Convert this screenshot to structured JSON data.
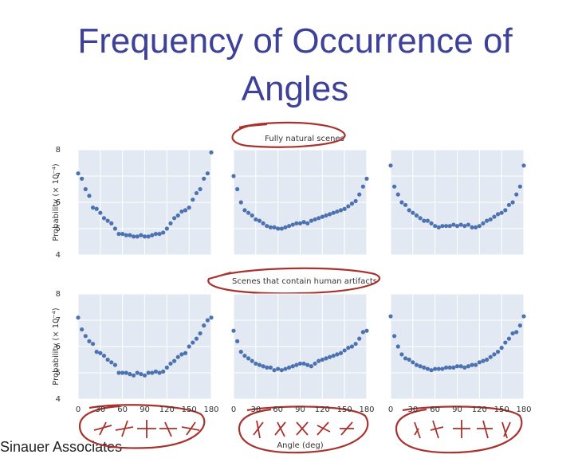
{
  "title": "Frequency of Occurrence of Angles",
  "sections": [
    "Fully natural scenes",
    "Scenes that contain human artifacts"
  ],
  "footer": "Sinauer Associates",
  "chart_data": [
    {
      "type": "scatter",
      "color": "#4c72b0",
      "grid": true,
      "y_label": "Probability (× 10⁻⁴)",
      "xlim": [
        0,
        180
      ],
      "ylim": [
        4,
        8
      ],
      "yticks": [
        4,
        5,
        6,
        7,
        8
      ],
      "xticks": [
        0,
        30,
        60,
        90,
        120,
        150,
        180
      ],
      "ytick_labels": true,
      "xtick_labels": false,
      "x": [
        0,
        5,
        10,
        15,
        20,
        25,
        30,
        35,
        40,
        45,
        50,
        55,
        60,
        65,
        70,
        75,
        80,
        85,
        90,
        95,
        100,
        105,
        110,
        115,
        120,
        125,
        130,
        135,
        140,
        145,
        150,
        155,
        160,
        165,
        170,
        175,
        180
      ],
      "values": [
        7.1,
        6.9,
        6.5,
        6.25,
        5.8,
        5.75,
        5.6,
        5.4,
        5.3,
        5.2,
        5.0,
        4.8,
        4.8,
        4.75,
        4.75,
        4.7,
        4.7,
        4.75,
        4.7,
        4.7,
        4.75,
        4.8,
        4.8,
        4.85,
        5.0,
        5.2,
        5.4,
        5.5,
        5.65,
        5.7,
        5.8,
        6.1,
        6.35,
        6.5,
        6.9,
        7.1,
        7.9
      ]
    },
    {
      "type": "scatter",
      "color": "#4c72b0",
      "grid": true,
      "xlim": [
        0,
        180
      ],
      "ylim": [
        4,
        8
      ],
      "yticks": [
        4,
        5,
        6,
        7,
        8
      ],
      "xticks": [
        0,
        30,
        60,
        90,
        120,
        150,
        180
      ],
      "ytick_labels": false,
      "xtick_labels": false,
      "x": [
        0,
        5,
        10,
        15,
        20,
        25,
        30,
        35,
        40,
        45,
        50,
        55,
        60,
        65,
        70,
        75,
        80,
        85,
        90,
        95,
        100,
        105,
        110,
        115,
        120,
        125,
        130,
        135,
        140,
        145,
        150,
        155,
        160,
        165,
        170,
        175,
        180
      ],
      "values": [
        7.0,
        6.5,
        6.0,
        5.7,
        5.6,
        5.5,
        5.35,
        5.3,
        5.2,
        5.1,
        5.05,
        5.05,
        5.0,
        5.0,
        5.05,
        5.1,
        5.15,
        5.2,
        5.2,
        5.25,
        5.2,
        5.3,
        5.35,
        5.4,
        5.45,
        5.5,
        5.55,
        5.6,
        5.65,
        5.7,
        5.75,
        5.85,
        5.95,
        6.05,
        6.3,
        6.6,
        6.9
      ]
    },
    {
      "type": "scatter",
      "color": "#4c72b0",
      "grid": true,
      "xlim": [
        0,
        180
      ],
      "ylim": [
        4,
        8
      ],
      "yticks": [
        4,
        5,
        6,
        7,
        8
      ],
      "xticks": [
        0,
        30,
        60,
        90,
        120,
        150,
        180
      ],
      "ytick_labels": false,
      "xtick_labels": false,
      "x": [
        0,
        5,
        10,
        15,
        20,
        25,
        30,
        35,
        40,
        45,
        50,
        55,
        60,
        65,
        70,
        75,
        80,
        85,
        90,
        95,
        100,
        105,
        110,
        115,
        120,
        125,
        130,
        135,
        140,
        145,
        150,
        155,
        160,
        165,
        170,
        175,
        180
      ],
      "values": [
        7.4,
        6.6,
        6.3,
        6.0,
        5.9,
        5.7,
        5.6,
        5.5,
        5.4,
        5.3,
        5.3,
        5.2,
        5.1,
        5.05,
        5.1,
        5.1,
        5.1,
        5.15,
        5.1,
        5.15,
        5.1,
        5.15,
        5.05,
        5.05,
        5.1,
        5.2,
        5.3,
        5.35,
        5.45,
        5.55,
        5.6,
        5.7,
        5.9,
        6.0,
        6.3,
        6.6,
        7.4
      ]
    },
    {
      "type": "scatter",
      "color": "#4c72b0",
      "grid": true,
      "y_label": "Probability (× 10⁻⁴)",
      "xlim": [
        0,
        180
      ],
      "ylim": [
        4,
        8
      ],
      "yticks": [
        4,
        5,
        6,
        7,
        8
      ],
      "xticks": [
        0,
        30,
        60,
        90,
        120,
        150,
        180
      ],
      "ytick_labels": true,
      "xtick_labels": true,
      "x": [
        0,
        5,
        10,
        15,
        20,
        25,
        30,
        35,
        40,
        45,
        50,
        55,
        60,
        65,
        70,
        75,
        80,
        85,
        90,
        95,
        100,
        105,
        110,
        115,
        120,
        125,
        130,
        135,
        140,
        145,
        150,
        155,
        160,
        165,
        170,
        175,
        180
      ],
      "values": [
        7.1,
        6.65,
        6.4,
        6.2,
        6.1,
        5.8,
        5.75,
        5.65,
        5.5,
        5.4,
        5.3,
        5.0,
        5.0,
        5.0,
        4.95,
        4.9,
        5.0,
        4.95,
        4.9,
        5.0,
        5.0,
        5.05,
        5.0,
        5.05,
        5.2,
        5.35,
        5.45,
        5.6,
        5.7,
        5.75,
        6.0,
        6.15,
        6.3,
        6.5,
        6.8,
        7.0,
        7.1
      ]
    },
    {
      "type": "scatter",
      "color": "#4c72b0",
      "grid": true,
      "x_label": "Angle (deg)",
      "xlim": [
        0,
        180
      ],
      "ylim": [
        4,
        8
      ],
      "yticks": [
        4,
        5,
        6,
        7,
        8
      ],
      "xticks": [
        0,
        30,
        60,
        90,
        120,
        150,
        180
      ],
      "ytick_labels": false,
      "xtick_labels": true,
      "x": [
        0,
        5,
        10,
        15,
        20,
        25,
        30,
        35,
        40,
        45,
        50,
        55,
        60,
        65,
        70,
        75,
        80,
        85,
        90,
        95,
        100,
        105,
        110,
        115,
        120,
        125,
        130,
        135,
        140,
        145,
        150,
        155,
        160,
        165,
        170,
        175,
        180
      ],
      "values": [
        6.6,
        6.2,
        5.8,
        5.65,
        5.55,
        5.45,
        5.35,
        5.3,
        5.25,
        5.2,
        5.2,
        5.1,
        5.15,
        5.1,
        5.15,
        5.2,
        5.25,
        5.3,
        5.35,
        5.35,
        5.3,
        5.25,
        5.35,
        5.45,
        5.5,
        5.55,
        5.6,
        5.65,
        5.7,
        5.75,
        5.85,
        5.95,
        6.0,
        6.1,
        6.3,
        6.55,
        6.6
      ]
    },
    {
      "type": "scatter",
      "color": "#4c72b0",
      "grid": true,
      "xlim": [
        0,
        180
      ],
      "ylim": [
        4,
        8
      ],
      "yticks": [
        4,
        5,
        6,
        7,
        8
      ],
      "xticks": [
        0,
        30,
        60,
        90,
        120,
        150,
        180
      ],
      "ytick_labels": false,
      "xtick_labels": true,
      "x": [
        0,
        5,
        10,
        15,
        20,
        25,
        30,
        35,
        40,
        45,
        50,
        55,
        60,
        65,
        70,
        75,
        80,
        85,
        90,
        95,
        100,
        105,
        110,
        115,
        120,
        125,
        130,
        135,
        140,
        145,
        150,
        155,
        160,
        165,
        170,
        175,
        180
      ],
      "values": [
        7.15,
        6.4,
        6.0,
        5.7,
        5.55,
        5.5,
        5.4,
        5.3,
        5.25,
        5.2,
        5.15,
        5.1,
        5.15,
        5.15,
        5.15,
        5.2,
        5.2,
        5.2,
        5.25,
        5.25,
        5.2,
        5.25,
        5.3,
        5.3,
        5.4,
        5.45,
        5.5,
        5.6,
        5.7,
        5.8,
        5.95,
        6.15,
        6.3,
        6.5,
        6.55,
        6.8,
        7.15
      ]
    }
  ]
}
